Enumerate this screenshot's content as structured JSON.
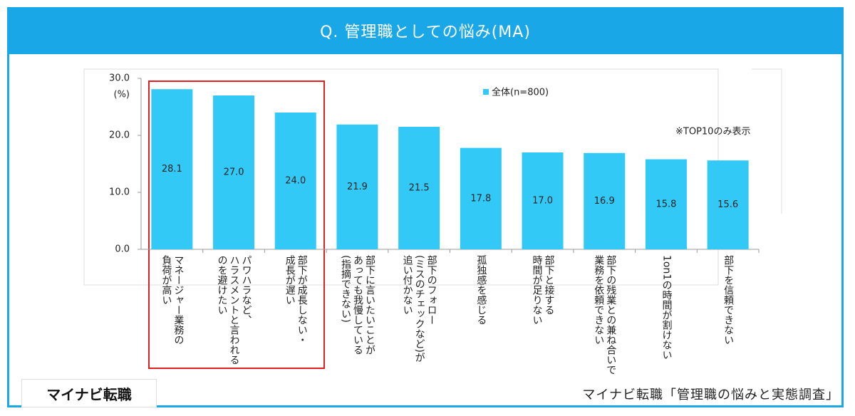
{
  "chart_data": {
    "type": "bar",
    "title": "Q. 管理職としての悩み(MA)",
    "y_unit": "(%)",
    "categories": [
      "マネージャー業務の\n負荷が高い",
      "パワハラなど、\nハラスメントと言われる\nのを避けたい",
      "部下が成長しない・\n成長が遅い",
      "部下に言いたいことが\nあっても我慢している\n(指摘できない)",
      "部下のフォロー\n(ミスのチェックなど)が\n追い付かない",
      "孤独感を感じる",
      "部下と接する\n時間が足りない",
      "部下の残業との兼ね合いで\n業務を依頼できない",
      "1on1の時間が割けない",
      "部下を信頼できない"
    ],
    "series": [
      {
        "name": "全体(n=800)",
        "color": "#33c9f7",
        "values": [
          28.1,
          27.0,
          24.0,
          21.9,
          21.5,
          17.8,
          17.0,
          16.9,
          15.8,
          15.6
        ],
        "value_labels": [
          "28.1",
          "27.0",
          "24.0",
          "21.9",
          "21.5",
          "17.8",
          "17.0",
          "16.9",
          "15.8",
          "15.6"
        ]
      }
    ],
    "ylim": [
      0,
      30
    ],
    "yticks": [
      {
        "value": 0,
        "label": "0.0"
      },
      {
        "value": 10,
        "label": "10.0"
      },
      {
        "value": 20,
        "label": "20.0"
      },
      {
        "value": 30,
        "label": "30.0"
      }
    ],
    "annotation": "※TOP10のみ表示",
    "logo": "マイナビ転職",
    "source": "マイナビ転職「管理職の悩みと実態調査」"
  }
}
